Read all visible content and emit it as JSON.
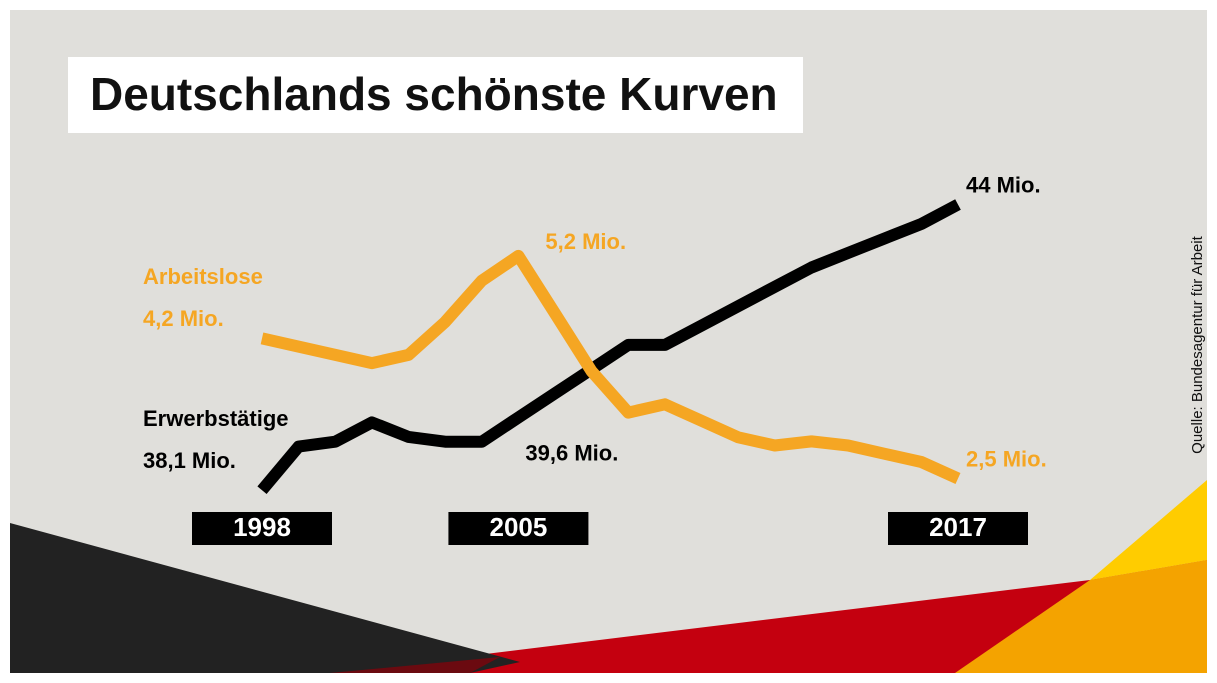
{
  "chart_data": {
    "type": "line",
    "title": "Deutschlands schönste Kurven",
    "source": "Quelle: Bundesagentur für Arbeit",
    "categories": [
      "1998",
      null,
      null,
      null,
      null,
      null,
      null,
      "2005",
      null,
      null,
      null,
      null,
      null,
      null,
      null,
      null,
      null,
      null,
      null,
      "2017"
    ],
    "ylim": [
      38,
      44.3
    ],
    "y2lim": [
      2.3,
      6.0
    ],
    "series": [
      {
        "name": "Erwerbstätige",
        "color": "#000000",
        "values": [
          38.1,
          39.0,
          39.1,
          39.5,
          39.2,
          39.1,
          39.1,
          39.6,
          40.1,
          40.6,
          41.1,
          41.1,
          41.5,
          41.9,
          42.3,
          42.7,
          43.0,
          43.3,
          43.6,
          44
        ],
        "value_labels": [
          "38,1 Mio.",
          null,
          null,
          null,
          null,
          null,
          null,
          "39,6 Mio.",
          null,
          null,
          null,
          null,
          null,
          null,
          null,
          null,
          null,
          null,
          null,
          "44 Mio."
        ]
      },
      {
        "name": "Arbeitslose",
        "color": "#f5a623",
        "axis": "y2",
        "values": [
          4.2,
          4.1,
          4.0,
          3.9,
          4.0,
          4.4,
          4.9,
          5.2,
          4.5,
          3.8,
          3.3,
          3.4,
          3.2,
          3.0,
          2.9,
          2.95,
          2.9,
          2.8,
          2.7,
          2.5
        ],
        "value_labels": [
          "4,2 Mio.",
          null,
          null,
          null,
          null,
          null,
          null,
          "5,2 Mio.",
          null,
          null,
          null,
          null,
          null,
          null,
          null,
          null,
          null,
          null,
          null,
          "2,5 Mio."
        ]
      }
    ]
  }
}
